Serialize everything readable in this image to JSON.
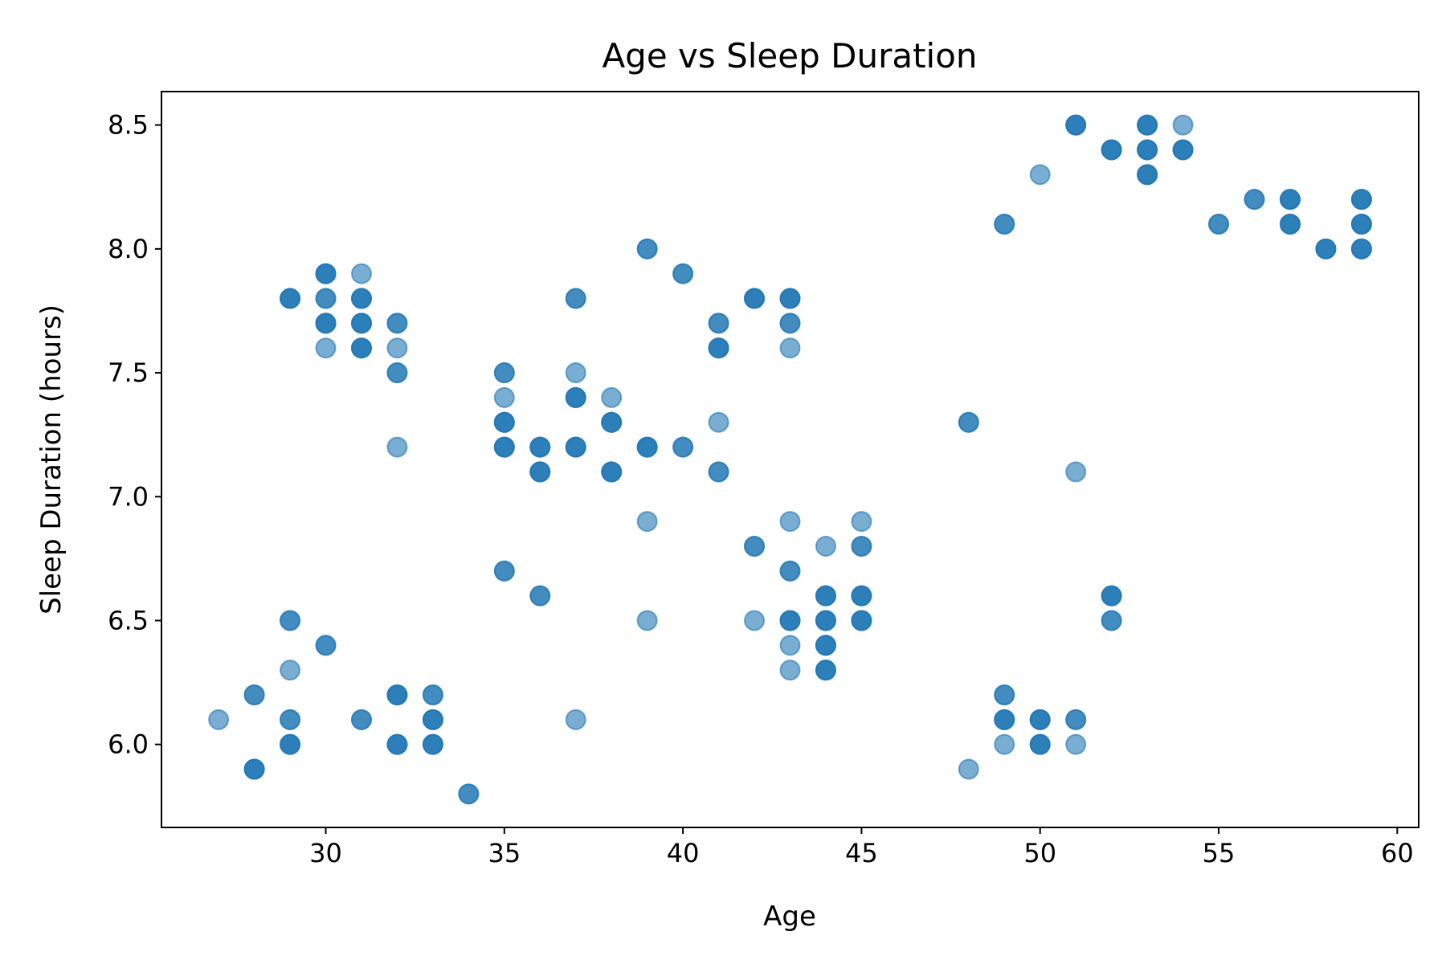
{
  "chart_data": {
    "type": "scatter",
    "title": "Age vs Sleep Duration",
    "xlabel": "Age",
    "ylabel": "Sleep Duration (hours)",
    "xlim": [
      25.4,
      60.6
    ],
    "ylim": [
      5.665,
      8.635
    ],
    "xticks": [
      30,
      35,
      40,
      45,
      50,
      55,
      60
    ],
    "yticks": [
      6.0,
      6.5,
      7.0,
      7.5,
      8.0,
      8.5
    ],
    "xtick_labels": [
      "30",
      "35",
      "40",
      "45",
      "50",
      "55",
      "60"
    ],
    "ytick_labels": [
      "6.0",
      "6.5",
      "7.0",
      "7.5",
      "8.0",
      "8.5"
    ],
    "grid": false,
    "legend": "none",
    "marker_color": "#1f77b4",
    "marker_alpha": 0.6,
    "points": [
      [
        27,
        6.1
      ],
      [
        28,
        6.2
      ],
      [
        28,
        6.2
      ],
      [
        28,
        5.9
      ],
      [
        28,
        5.9
      ],
      [
        28,
        5.9
      ],
      [
        29,
        7.8
      ],
      [
        29,
        7.8
      ],
      [
        29,
        7.8
      ],
      [
        29,
        6.5
      ],
      [
        29,
        6.5
      ],
      [
        29,
        6.3
      ],
      [
        29,
        6.1
      ],
      [
        29,
        6.1
      ],
      [
        29,
        6.0
      ],
      [
        29,
        6.0
      ],
      [
        29,
        6.0
      ],
      [
        30,
        7.9
      ],
      [
        30,
        7.9
      ],
      [
        30,
        7.9
      ],
      [
        30,
        7.8
      ],
      [
        30,
        7.8
      ],
      [
        30,
        7.7
      ],
      [
        30,
        7.7
      ],
      [
        30,
        7.7
      ],
      [
        30,
        7.6
      ],
      [
        30,
        6.4
      ],
      [
        30,
        6.4
      ],
      [
        31,
        7.9
      ],
      [
        31,
        7.8
      ],
      [
        31,
        7.8
      ],
      [
        31,
        7.8
      ],
      [
        31,
        7.7
      ],
      [
        31,
        7.7
      ],
      [
        31,
        7.7
      ],
      [
        31,
        7.6
      ],
      [
        31,
        7.6
      ],
      [
        31,
        7.6
      ],
      [
        31,
        6.1
      ],
      [
        31,
        6.1
      ],
      [
        32,
        7.7
      ],
      [
        32,
        7.7
      ],
      [
        32,
        7.6
      ],
      [
        32,
        7.5
      ],
      [
        32,
        7.5
      ],
      [
        32,
        7.2
      ],
      [
        32,
        6.2
      ],
      [
        32,
        6.2
      ],
      [
        32,
        6.2
      ],
      [
        32,
        6.0
      ],
      [
        32,
        6.0
      ],
      [
        32,
        6.0
      ],
      [
        33,
        6.2
      ],
      [
        33,
        6.2
      ],
      [
        33,
        6.1
      ],
      [
        33,
        6.1
      ],
      [
        33,
        6.1
      ],
      [
        33,
        6.0
      ],
      [
        33,
        6.0
      ],
      [
        33,
        6.0
      ],
      [
        34,
        5.8
      ],
      [
        34,
        5.8
      ],
      [
        35,
        7.5
      ],
      [
        35,
        7.5
      ],
      [
        35,
        7.4
      ],
      [
        35,
        7.3
      ],
      [
        35,
        7.3
      ],
      [
        35,
        7.3
      ],
      [
        35,
        7.2
      ],
      [
        35,
        7.2
      ],
      [
        35,
        7.2
      ],
      [
        35,
        6.7
      ],
      [
        35,
        6.7
      ],
      [
        36,
        7.2
      ],
      [
        36,
        7.2
      ],
      [
        36,
        7.2
      ],
      [
        36,
        7.1
      ],
      [
        36,
        7.1
      ],
      [
        36,
        7.1
      ],
      [
        36,
        6.6
      ],
      [
        36,
        6.6
      ],
      [
        37,
        7.8
      ],
      [
        37,
        7.8
      ],
      [
        37,
        7.5
      ],
      [
        37,
        7.4
      ],
      [
        37,
        7.4
      ],
      [
        37,
        7.4
      ],
      [
        37,
        7.2
      ],
      [
        37,
        7.2
      ],
      [
        37,
        7.2
      ],
      [
        37,
        6.1
      ],
      [
        38,
        7.4
      ],
      [
        38,
        7.3
      ],
      [
        38,
        7.3
      ],
      [
        38,
        7.3
      ],
      [
        38,
        7.1
      ],
      [
        38,
        7.1
      ],
      [
        38,
        7.1
      ],
      [
        39,
        8.0
      ],
      [
        39,
        8.0
      ],
      [
        39,
        7.2
      ],
      [
        39,
        7.2
      ],
      [
        39,
        7.2
      ],
      [
        39,
        6.9
      ],
      [
        39,
        6.5
      ],
      [
        40,
        7.9
      ],
      [
        40,
        7.9
      ],
      [
        40,
        7.2
      ],
      [
        40,
        7.2
      ],
      [
        41,
        7.7
      ],
      [
        41,
        7.7
      ],
      [
        41,
        7.6
      ],
      [
        41,
        7.6
      ],
      [
        41,
        7.6
      ],
      [
        41,
        7.3
      ],
      [
        41,
        7.1
      ],
      [
        41,
        7.1
      ],
      [
        42,
        7.8
      ],
      [
        42,
        7.8
      ],
      [
        42,
        7.8
      ],
      [
        42,
        6.8
      ],
      [
        42,
        6.8
      ],
      [
        42,
        6.5
      ],
      [
        43,
        7.8
      ],
      [
        43,
        7.8
      ],
      [
        43,
        7.8
      ],
      [
        43,
        7.7
      ],
      [
        43,
        7.7
      ],
      [
        43,
        7.6
      ],
      [
        43,
        6.9
      ],
      [
        43,
        6.7
      ],
      [
        43,
        6.7
      ],
      [
        43,
        6.5
      ],
      [
        43,
        6.5
      ],
      [
        43,
        6.5
      ],
      [
        43,
        6.4
      ],
      [
        43,
        6.3
      ],
      [
        44,
        6.8
      ],
      [
        44,
        6.6
      ],
      [
        44,
        6.6
      ],
      [
        44,
        6.6
      ],
      [
        44,
        6.5
      ],
      [
        44,
        6.5
      ],
      [
        44,
        6.5
      ],
      [
        44,
        6.4
      ],
      [
        44,
        6.4
      ],
      [
        44,
        6.4
      ],
      [
        44,
        6.3
      ],
      [
        44,
        6.3
      ],
      [
        44,
        6.3
      ],
      [
        45,
        6.9
      ],
      [
        45,
        6.8
      ],
      [
        45,
        6.8
      ],
      [
        45,
        6.6
      ],
      [
        45,
        6.6
      ],
      [
        45,
        6.6
      ],
      [
        45,
        6.5
      ],
      [
        45,
        6.5
      ],
      [
        45,
        6.5
      ],
      [
        48,
        7.3
      ],
      [
        48,
        7.3
      ],
      [
        48,
        5.9
      ],
      [
        49,
        8.1
      ],
      [
        49,
        8.1
      ],
      [
        49,
        6.2
      ],
      [
        49,
        6.2
      ],
      [
        49,
        6.1
      ],
      [
        49,
        6.1
      ],
      [
        49,
        6.1
      ],
      [
        49,
        6.0
      ],
      [
        50,
        8.3
      ],
      [
        50,
        6.1
      ],
      [
        50,
        6.1
      ],
      [
        50,
        6.1
      ],
      [
        50,
        6.0
      ],
      [
        50,
        6.0
      ],
      [
        50,
        6.0
      ],
      [
        51,
        8.5
      ],
      [
        51,
        8.5
      ],
      [
        51,
        8.5
      ],
      [
        51,
        7.1
      ],
      [
        51,
        6.1
      ],
      [
        51,
        6.1
      ],
      [
        51,
        6.0
      ],
      [
        52,
        8.4
      ],
      [
        52,
        8.4
      ],
      [
        52,
        8.4
      ],
      [
        52,
        6.6
      ],
      [
        52,
        6.6
      ],
      [
        52,
        6.6
      ],
      [
        52,
        6.5
      ],
      [
        52,
        6.5
      ],
      [
        53,
        8.5
      ],
      [
        53,
        8.5
      ],
      [
        53,
        8.5
      ],
      [
        53,
        8.4
      ],
      [
        53,
        8.4
      ],
      [
        53,
        8.4
      ],
      [
        53,
        8.3
      ],
      [
        53,
        8.3
      ],
      [
        53,
        8.3
      ],
      [
        54,
        8.5
      ],
      [
        54,
        8.4
      ],
      [
        54,
        8.4
      ],
      [
        54,
        8.4
      ],
      [
        55,
        8.1
      ],
      [
        55,
        8.1
      ],
      [
        56,
        8.2
      ],
      [
        56,
        8.2
      ],
      [
        57,
        8.2
      ],
      [
        57,
        8.2
      ],
      [
        57,
        8.2
      ],
      [
        57,
        8.1
      ],
      [
        57,
        8.1
      ],
      [
        57,
        8.1
      ],
      [
        58,
        8.0
      ],
      [
        58,
        8.0
      ],
      [
        58,
        8.0
      ],
      [
        59,
        8.2
      ],
      [
        59,
        8.2
      ],
      [
        59,
        8.2
      ],
      [
        59,
        8.1
      ],
      [
        59,
        8.1
      ],
      [
        59,
        8.1
      ],
      [
        59,
        8.0
      ],
      [
        59,
        8.0
      ],
      [
        59,
        8.0
      ]
    ]
  }
}
